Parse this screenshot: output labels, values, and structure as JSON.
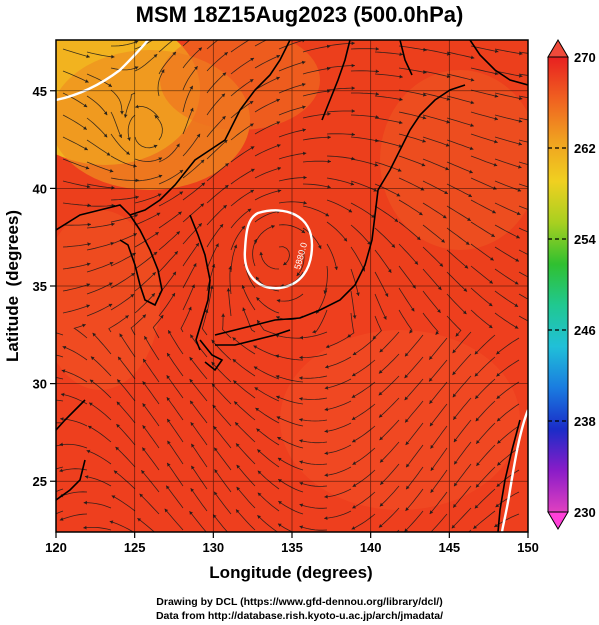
{
  "title": "MSM 18Z15Aug2023 (500.0hPa)",
  "xaxis": {
    "label": "Longitude (degrees)",
    "ticks": [
      "120",
      "125",
      "130",
      "135",
      "140",
      "145",
      "150"
    ],
    "range": [
      120,
      150
    ]
  },
  "yaxis": {
    "label": "Latitude  (degrees)",
    "ticks": [
      "25",
      "30",
      "35",
      "40",
      "45"
    ],
    "range": [
      22.4,
      47.6
    ]
  },
  "colorbar": {
    "ticks": [
      "270",
      "262",
      "254",
      "246",
      "238",
      "230"
    ],
    "range": [
      230,
      270
    ],
    "colors": [
      "#e040c0",
      "#8a1cc8",
      "#1a2cc8",
      "#1a7ce0",
      "#20c0d8",
      "#20c890",
      "#30c030",
      "#a8d020",
      "#f0d020",
      "#f0a020",
      "#f06020",
      "#e82020"
    ]
  },
  "contour": {
    "label": "5880.0"
  },
  "credits": [
    "Drawing by DCL (https://www.gfd-dennou.org/library/dcl/)",
    "Data from http://database.rish.kyoto-u.ac.jp/arch/jmadata/"
  ]
}
